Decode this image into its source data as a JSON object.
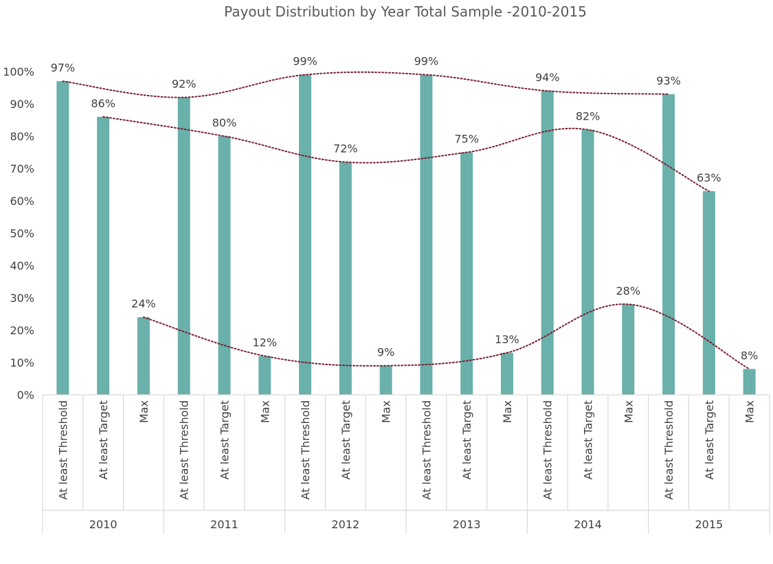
{
  "chart_data": {
    "type": "bar",
    "title": "Payout Distribution by Year Total Sample -2010-2015",
    "years": [
      "2010",
      "2011",
      "2012",
      "2013",
      "2014",
      "2015"
    ],
    "categories": [
      "At least Threshold",
      "At least Target",
      "Max"
    ],
    "values": [
      [
        97,
        86,
        24
      ],
      [
        92,
        80,
        12
      ],
      [
        99,
        72,
        9
      ],
      [
        99,
        75,
        13
      ],
      [
        94,
        82,
        28
      ],
      [
        93,
        63,
        8
      ]
    ],
    "data_labels": [
      [
        "97%",
        "86%",
        "24%"
      ],
      [
        "92%",
        "80%",
        "12%"
      ],
      [
        "99%",
        "72%",
        "9%"
      ],
      [
        "99%",
        "75%",
        "13%"
      ],
      [
        "94%",
        "82%",
        "28%"
      ],
      [
        "93%",
        "63%",
        "8%"
      ]
    ],
    "y_ticks": [
      "0%",
      "10%",
      "20%",
      "30%",
      "40%",
      "50%",
      "60%",
      "70%",
      "80%",
      "90%",
      "100%"
    ],
    "ylim": [
      0,
      100
    ],
    "grid": false,
    "bar_color": "#6ab0ab",
    "trendline_color": "#7a1e2e",
    "trendlines": "smoothed dotted line through each category across years"
  }
}
